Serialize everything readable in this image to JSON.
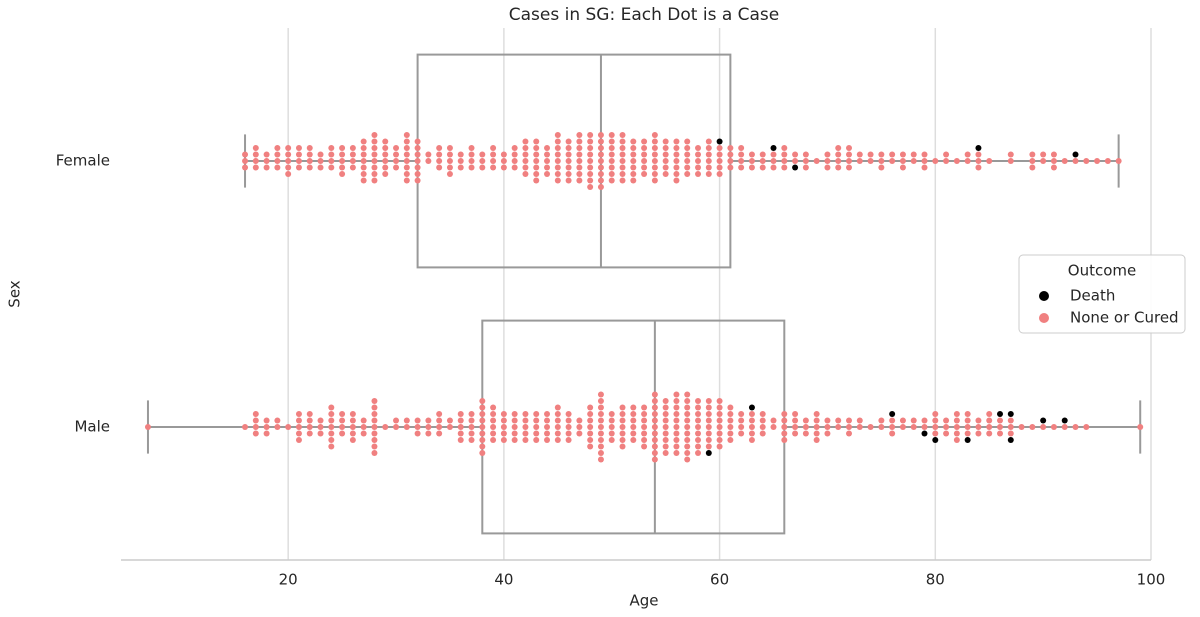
{
  "chart_data": {
    "type": "box-swarm",
    "title": "Cases in SG: Each Dot is a Case",
    "xlabel": "Age",
    "ylabel": "Sex",
    "categories": [
      "Female",
      "Male"
    ],
    "xlim": [
      4.5,
      100
    ],
    "xticks": [
      20,
      40,
      60,
      80,
      100
    ],
    "grid": true,
    "box_color": "#999999",
    "boxes": [
      {
        "whislo": 16,
        "q1": 32,
        "med": 49,
        "q3": 61,
        "whishi": 97
      },
      {
        "whislo": 7,
        "q1": 38,
        "med": 54,
        "q3": 66,
        "whishi": 99
      }
    ],
    "legend": {
      "title": "Outcome",
      "position": "right"
    },
    "series": [
      {
        "name": "Death",
        "color": "#000000",
        "ages": [
          [
            60,
            65,
            67,
            84,
            93
          ],
          [
            59,
            63,
            76,
            79,
            80,
            83,
            86,
            87,
            90,
            92
          ]
        ],
        "counts": [
          [
            1,
            1,
            1,
            1,
            1
          ],
          [
            1,
            1,
            1,
            1,
            1,
            1,
            1,
            2,
            1,
            1
          ]
        ]
      },
      {
        "name": "None or Cured",
        "color": "#f08080",
        "ages": [
          [
            16,
            17,
            18,
            19,
            20,
            21,
            22,
            23,
            24,
            25,
            26,
            27,
            28,
            29,
            30,
            31,
            32,
            33,
            34,
            35,
            36,
            37,
            38,
            39,
            40,
            41,
            42,
            43,
            44,
            45,
            46,
            47,
            48,
            49,
            50,
            51,
            52,
            53,
            54,
            55,
            56,
            57,
            58,
            59,
            60,
            61,
            62,
            63,
            64,
            65,
            66,
            67,
            68,
            69,
            70,
            71,
            72,
            73,
            74,
            75,
            76,
            77,
            78,
            79,
            80,
            81,
            82,
            83,
            84,
            85,
            87,
            89,
            90,
            91,
            92,
            93,
            94,
            95,
            96,
            97
          ],
          [
            7,
            16,
            17,
            18,
            19,
            20,
            21,
            22,
            23,
            24,
            25,
            26,
            27,
            28,
            29,
            30,
            31,
            32,
            33,
            34,
            35,
            36,
            37,
            38,
            39,
            40,
            41,
            42,
            43,
            44,
            45,
            46,
            47,
            48,
            49,
            50,
            51,
            52,
            53,
            54,
            55,
            56,
            57,
            58,
            59,
            60,
            61,
            62,
            63,
            64,
            65,
            66,
            67,
            68,
            69,
            70,
            71,
            72,
            73,
            74,
            75,
            76,
            77,
            78,
            79,
            80,
            81,
            82,
            83,
            84,
            85,
            86,
            87,
            88,
            89,
            90,
            91,
            92,
            93,
            94,
            99
          ]
        ],
        "counts": [
          [
            3,
            4,
            3,
            4,
            5,
            4,
            4,
            3,
            4,
            5,
            4,
            7,
            8,
            6,
            4,
            8,
            7,
            2,
            4,
            5,
            3,
            4,
            3,
            4,
            3,
            4,
            6,
            7,
            5,
            8,
            7,
            8,
            9,
            9,
            8,
            8,
            7,
            6,
            8,
            6,
            7,
            6,
            5,
            6,
            5,
            4,
            4,
            3,
            3,
            3,
            4,
            2,
            3,
            1,
            3,
            4,
            4,
            2,
            2,
            3,
            2,
            3,
            2,
            3,
            1,
            2,
            1,
            2,
            3,
            1,
            2,
            3,
            2,
            3,
            1,
            1,
            1,
            1,
            1,
            1
          ],
          [
            1,
            1,
            4,
            3,
            2,
            1,
            5,
            4,
            3,
            7,
            4,
            5,
            3,
            9,
            1,
            2,
            2,
            3,
            3,
            4,
            2,
            5,
            5,
            9,
            6,
            5,
            5,
            5,
            5,
            5,
            6,
            5,
            3,
            7,
            11,
            5,
            7,
            6,
            7,
            11,
            9,
            10,
            11,
            9,
            8,
            8,
            6,
            4,
            5,
            4,
            2,
            5,
            4,
            3,
            5,
            3,
            2,
            3,
            2,
            1,
            2,
            3,
            2,
            2,
            2,
            4,
            3,
            5,
            4,
            3,
            4,
            3,
            3,
            1,
            1,
            1,
            1,
            1,
            1,
            1,
            1
          ]
        ]
      }
    ]
  }
}
